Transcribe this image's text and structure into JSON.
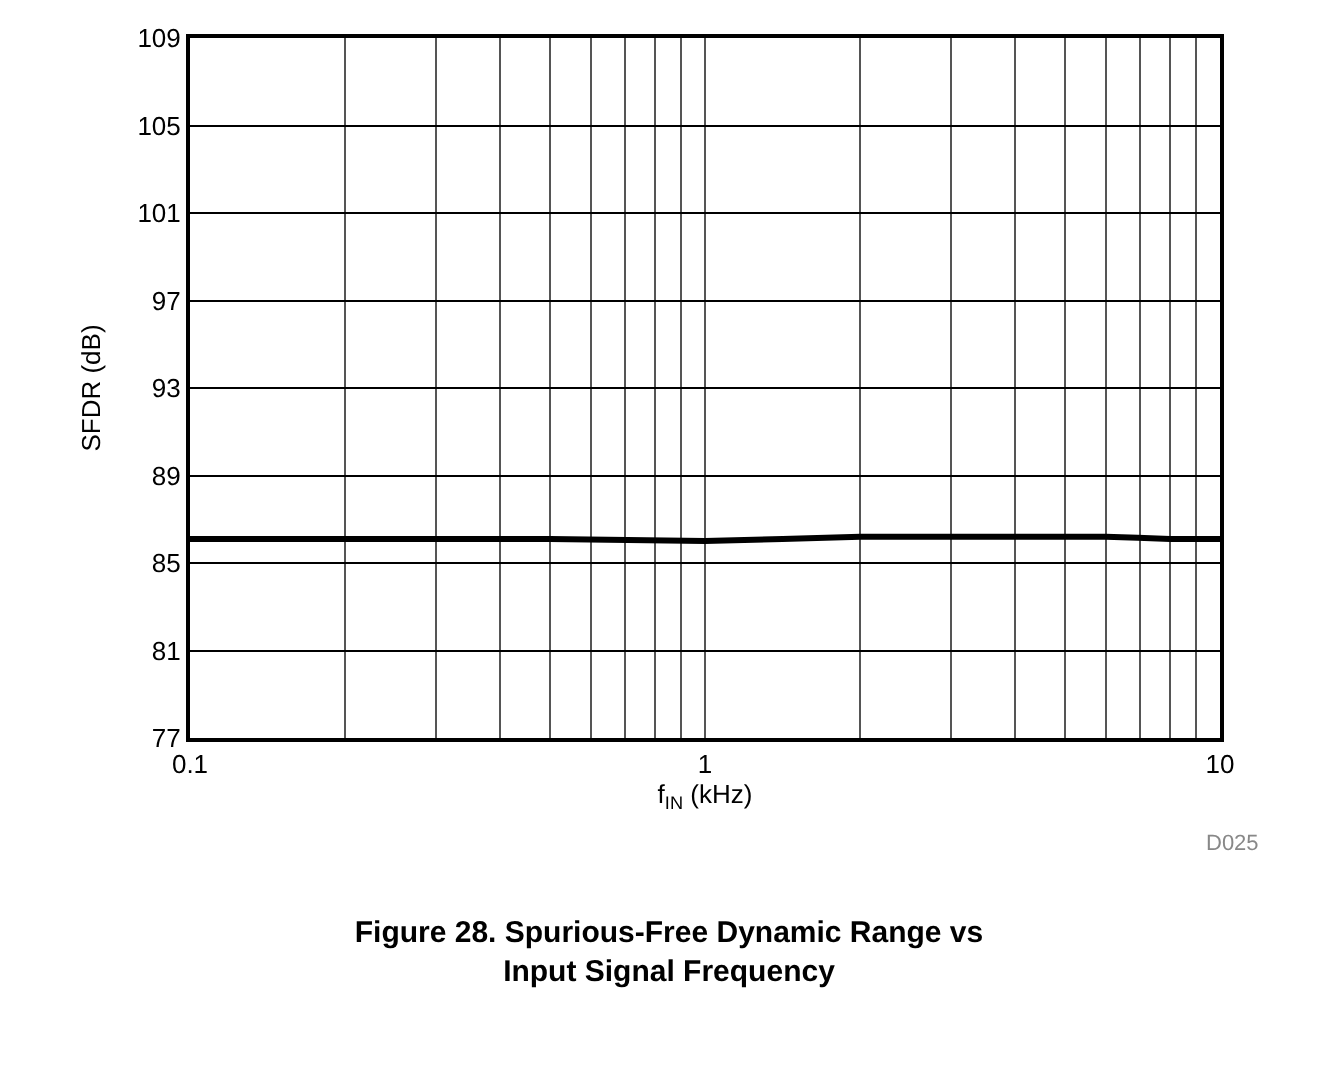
{
  "chart_data": {
    "type": "line",
    "title": "Figure 28. Spurious-Free Dynamic Range vs\nInput Signal Frequency",
    "xlabel": "f$_{IN}$ (kHz)",
    "ylabel": "SFDR (dB)",
    "log": "x",
    "x": [
      0.1,
      0.2,
      0.5,
      1,
      2,
      4,
      6,
      8,
      10
    ],
    "series": [
      {
        "color": "#000000",
        "values": [
          86.1,
          86.1,
          86.1,
          86.0,
          86.2,
          86.2,
          86.2,
          86.1,
          86.1
        ]
      }
    ],
    "xlim": [
      0.1,
      10
    ],
    "xticks": [
      0.1,
      {
        "value": 0.2,
        "label": null
      },
      {
        "value": 0.3,
        "label": null
      },
      {
        "value": 0.4,
        "label": null
      },
      {
        "value": 0.5,
        "label": null
      },
      {
        "value": 0.6,
        "label": null
      },
      {
        "value": 0.7,
        "label": null
      },
      {
        "value": 0.8,
        "label": null
      },
      {
        "value": 0.9,
        "label": null
      },
      1,
      {
        "value": 2,
        "label": null
      },
      {
        "value": 3,
        "label": null
      },
      {
        "value": 4,
        "label": null
      },
      {
        "value": 5,
        "label": null
      },
      {
        "value": 6,
        "label": null
      },
      {
        "value": 7,
        "label": null
      },
      {
        "value": 8,
        "label": null
      },
      {
        "value": 9,
        "label": null
      },
      10
    ],
    "ylim": [
      77,
      109
    ],
    "yticks": [
      77,
      81,
      85,
      89,
      93,
      97,
      101,
      105,
      109
    ],
    "grid": true,
    "marker": "none",
    "line_style": "solid",
    "annotations": [
      "D025"
    ]
  }
}
